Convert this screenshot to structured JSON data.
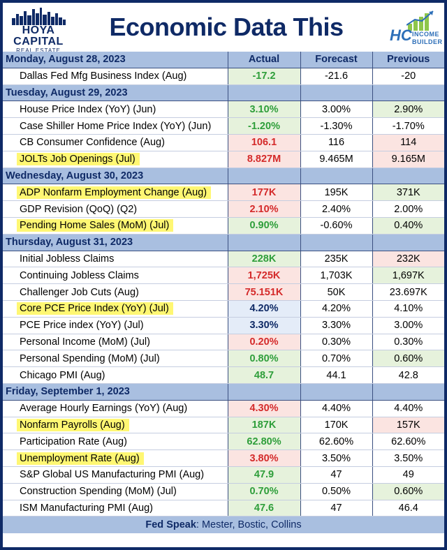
{
  "header": {
    "left_logo_line1": "HOYA CAPITAL",
    "left_logo_line2": "REAL ESTATE",
    "title": "Economic Data This Week",
    "right_logo_hc": "HC",
    "right_logo_line1": "INCOME",
    "right_logo_line2": "BUILDER"
  },
  "columns": {
    "actual": "Actual",
    "forecast": "Forecast",
    "previous": "Previous"
  },
  "colors": {
    "navy": "#0f2a66",
    "day_band": "#a9bfe0",
    "green": "#2e9e3a",
    "red": "#d42a2a",
    "highlight": "#fff773"
  },
  "days": [
    {
      "label": "Monday, August 28, 2023",
      "items": [
        {
          "name": "Dallas Fed Mfg Business Index (Aug)",
          "actual": "-17.2",
          "forecast": "-21.6",
          "previous": "-20",
          "highlight": false,
          "actual_color": "green",
          "previous_color": "none"
        }
      ]
    },
    {
      "label": "Tuesday, August 29, 2023",
      "items": [
        {
          "name": "House Price Index (YoY) (Jun)",
          "actual": "3.10%",
          "forecast": "3.00%",
          "previous": "2.90%",
          "highlight": false,
          "actual_color": "green",
          "previous_color": "green"
        },
        {
          "name": "Case Shiller Home Price Index (YoY) (Jun)",
          "actual": "-1.20%",
          "forecast": "-1.30%",
          "previous": "-1.70%",
          "highlight": false,
          "actual_color": "green",
          "previous_color": "none"
        },
        {
          "name": "CB Consumer Confidence (Aug)",
          "actual": "106.1",
          "forecast": "116",
          "previous": "114",
          "highlight": false,
          "actual_color": "red",
          "previous_color": "red"
        },
        {
          "name": "JOLTs Job Openings (Jul)",
          "actual": "8.827M",
          "forecast": "9.465M",
          "previous": "9.165M",
          "highlight": true,
          "actual_color": "red",
          "previous_color": "red"
        }
      ]
    },
    {
      "label": "Wednesday, August 30, 2023",
      "items": [
        {
          "name": "ADP Nonfarm Employment Change (Aug)",
          "actual": "177K",
          "forecast": "195K",
          "previous": "371K",
          "highlight": true,
          "actual_color": "red",
          "previous_color": "green"
        },
        {
          "name": "GDP Revision (QoQ) (Q2)",
          "actual": "2.10%",
          "forecast": "2.40%",
          "previous": "2.00%",
          "highlight": false,
          "actual_color": "red",
          "previous_color": "none"
        },
        {
          "name": "Pending Home Sales (MoM) (Jul)",
          "actual": "0.90%",
          "forecast": "-0.60%",
          "previous": "0.40%",
          "highlight": true,
          "actual_color": "green",
          "previous_color": "green"
        }
      ]
    },
    {
      "label": "Thursday, August 31, 2023",
      "items": [
        {
          "name": "Initial Jobless Claims",
          "actual": "228K",
          "forecast": "235K",
          "previous": "232K",
          "highlight": false,
          "actual_color": "green",
          "previous_color": "red"
        },
        {
          "name": "Continuing Jobless Claims",
          "actual": "1,725K",
          "forecast": "1,703K",
          "previous": "1,697K",
          "highlight": false,
          "actual_color": "red",
          "previous_color": "green"
        },
        {
          "name": "Challenger Job Cuts (Aug)",
          "actual": "75.151K",
          "forecast": "50K",
          "previous": "23.697K",
          "highlight": false,
          "actual_color": "red",
          "previous_color": "none"
        },
        {
          "name": "Core PCE Price Index (YoY) (Jul)",
          "actual": "4.20%",
          "forecast": "4.20%",
          "previous": "4.10%",
          "highlight": true,
          "actual_color": "blue",
          "previous_color": "none"
        },
        {
          "name": "PCE Price index (YoY) (Jul)",
          "actual": "3.30%",
          "forecast": "3.30%",
          "previous": "3.00%",
          "highlight": false,
          "actual_color": "blue",
          "previous_color": "none"
        },
        {
          "name": "Personal Income (MoM) (Jul)",
          "actual": "0.20%",
          "forecast": "0.30%",
          "previous": "0.30%",
          "highlight": false,
          "actual_color": "red",
          "previous_color": "none"
        },
        {
          "name": "Personal Spending (MoM) (Jul)",
          "actual": "0.80%",
          "forecast": "0.70%",
          "previous": "0.60%",
          "highlight": false,
          "actual_color": "green",
          "previous_color": "green"
        },
        {
          "name": "Chicago PMI (Aug)",
          "actual": "48.7",
          "forecast": "44.1",
          "previous": "42.8",
          "highlight": false,
          "actual_color": "green",
          "previous_color": "none"
        }
      ]
    },
    {
      "label": "Friday, September 1, 2023",
      "items": [
        {
          "name": "Average Hourly Earnings (YoY) (Aug)",
          "actual": "4.30%",
          "forecast": "4.40%",
          "previous": "4.40%",
          "highlight": false,
          "actual_color": "red",
          "previous_color": "none"
        },
        {
          "name": "Nonfarm Payrolls (Aug)",
          "actual": "187K",
          "forecast": "170K",
          "previous": "157K",
          "highlight": true,
          "actual_color": "green",
          "previous_color": "red"
        },
        {
          "name": "Participation Rate (Aug)",
          "actual": "62.80%",
          "forecast": "62.60%",
          "previous": "62.60%",
          "highlight": false,
          "actual_color": "green",
          "previous_color": "none"
        },
        {
          "name": "Unemployment Rate (Aug)",
          "actual": "3.80%",
          "forecast": "3.50%",
          "previous": "3.50%",
          "highlight": true,
          "actual_color": "red",
          "previous_color": "none"
        },
        {
          "name": "S&P Global US Manufacturing PMI (Aug)",
          "actual": "47.9",
          "forecast": "47",
          "previous": "49",
          "highlight": false,
          "actual_color": "green",
          "previous_color": "none"
        },
        {
          "name": "Construction Spending (MoM) (Jul)",
          "actual": "0.70%",
          "forecast": "0.50%",
          "previous": "0.60%",
          "highlight": false,
          "actual_color": "green",
          "previous_color": "green"
        },
        {
          "name": "ISM Manufacturing PMI (Aug)",
          "actual": "47.6",
          "forecast": "47",
          "previous": "46.4",
          "highlight": false,
          "actual_color": "green",
          "previous_color": "none"
        }
      ]
    }
  ],
  "footer": {
    "label": "Fed Speak",
    "text": ": Mester, Bostic, Collins"
  }
}
